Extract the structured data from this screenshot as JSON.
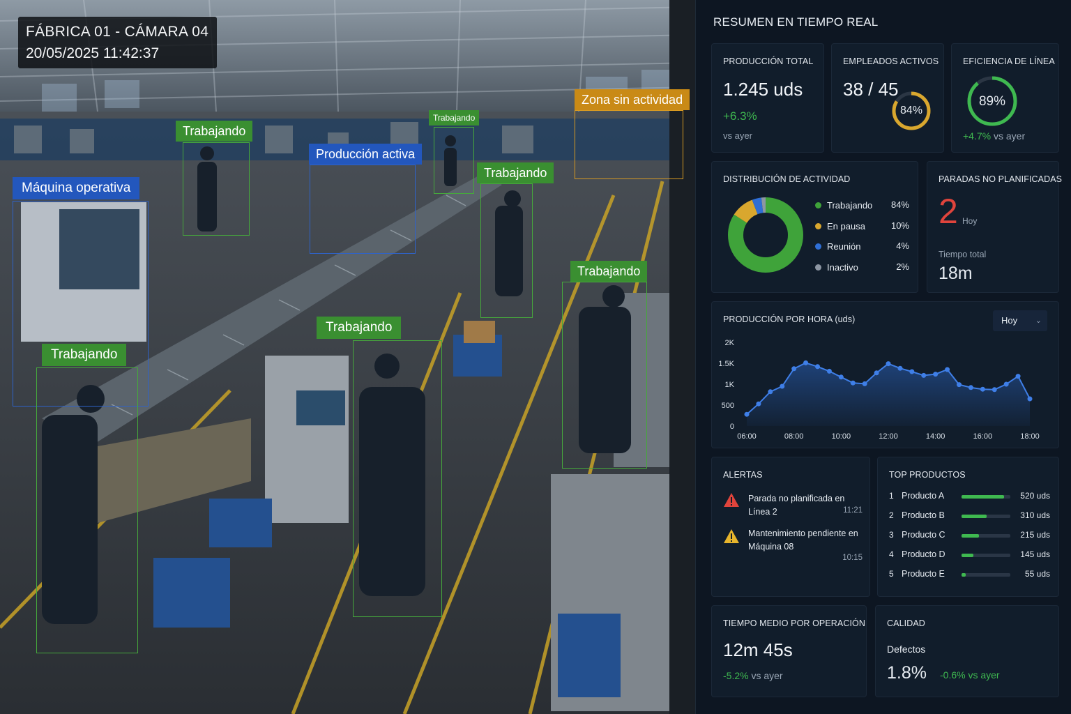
{
  "camera": {
    "title": "FÁBRICA 01 - CÁMARA 04",
    "datetime": "20/05/2025  11:42:37",
    "detections": [
      {
        "label": "Máquina operativa",
        "color": "blue"
      },
      {
        "label": "Trabajando",
        "color": "green"
      },
      {
        "label": "Producción activa",
        "color": "blue"
      },
      {
        "label": "Trabajando",
        "color": "green"
      },
      {
        "label": "Trabajando",
        "color": "green"
      },
      {
        "label": "Zona sin actividad",
        "color": "orange"
      },
      {
        "label": "Trabajando",
        "color": "green"
      },
      {
        "label": "Trabajando",
        "color": "green"
      },
      {
        "label": "Trabajando",
        "color": "green"
      }
    ]
  },
  "dashboard": {
    "title": "RESUMEN EN TIEMPO REAL",
    "production_total": {
      "label": "PRODUCCIÓN TOTAL",
      "value": "1.245 uds",
      "delta": "+6.3%",
      "compare": "vs ayer"
    },
    "employees": {
      "label": "EMPLEADOS ACTIVOS",
      "value": "38 / 45",
      "percent_label": "84%",
      "percent": 84
    },
    "efficiency": {
      "label": "EFICIENCIA DE LÍNEA",
      "value_label": "89%",
      "percent": 89,
      "delta": "+4.7%",
      "compare": "vs ayer"
    },
    "activity": {
      "label": "DISTRIBUCIÓN DE ACTIVIDAD",
      "items": [
        {
          "name": "Trabajando",
          "pct_label": "84%",
          "value": 84,
          "color": "#3fa33a"
        },
        {
          "name": "En pausa",
          "pct_label": "10%",
          "value": 10,
          "color": "#d9a72e"
        },
        {
          "name": "Reunión",
          "pct_label": "4%",
          "value": 4,
          "color": "#2f6fd6"
        },
        {
          "name": "Inactivo",
          "pct_label": "2%",
          "value": 2,
          "color": "#8d96a3"
        }
      ]
    },
    "stops": {
      "label": "PARADAS NO PLANIFICADAS",
      "count": "2",
      "period": "Hoy",
      "time_label": "Tiempo total",
      "time_value": "18m"
    },
    "hourly": {
      "label": "PRODUCCIÓN POR HORA (uds)",
      "select": "Hoy",
      "y_ticks": [
        "2K",
        "1.5K",
        "1K",
        "500",
        "0"
      ],
      "x_ticks": [
        "06:00",
        "08:00",
        "10:00",
        "12:00",
        "14:00",
        "16:00",
        "18:00"
      ]
    },
    "alerts": {
      "label": "ALERTAS",
      "items": [
        {
          "line1": "Parada no planificada en",
          "line2": "Línea 2",
          "time": "11:21",
          "level": "danger",
          "color": "#e0443c"
        },
        {
          "line1": "Mantenimiento pendiente en",
          "line2": "Máquina 08",
          "time": "10:15",
          "level": "warning",
          "color": "#e7b52c"
        }
      ]
    },
    "top_products": {
      "label": "TOP PRODUCTOS",
      "items": [
        {
          "rank": "1",
          "name": "Producto A",
          "value_label": "520 uds",
          "value": 520
        },
        {
          "rank": "2",
          "name": "Producto B",
          "value_label": "310 uds",
          "value": 310
        },
        {
          "rank": "3",
          "name": "Producto C",
          "value_label": "215 uds",
          "value": 215
        },
        {
          "rank": "4",
          "name": "Producto D",
          "value_label": "145 uds",
          "value": 145
        },
        {
          "rank": "5",
          "name": "Producto E",
          "value_label": "55 uds",
          "value": 55
        }
      ]
    },
    "avg_time": {
      "label": "TIEMPO MEDIO POR OPERACIÓN",
      "value": "12m 45s",
      "delta": "-5.2%",
      "compare": "vs ayer"
    },
    "quality": {
      "label": "CALIDAD",
      "sub": "Defectos",
      "value": "1.8%",
      "delta": "-0.6% vs ayer"
    }
  },
  "chart_data": {
    "type": "area",
    "title": "PRODUCCIÓN POR HORA (uds)",
    "x": [
      "06:00",
      "06:30",
      "07:00",
      "07:30",
      "08:00",
      "08:30",
      "09:00",
      "09:30",
      "10:00",
      "10:30",
      "11:00",
      "11:30",
      "12:00",
      "12:30",
      "13:00",
      "13:30",
      "14:00",
      "14:30",
      "15:00",
      "15:30",
      "16:00",
      "16:30",
      "17:00",
      "17:30",
      "18:00"
    ],
    "values": [
      280,
      530,
      820,
      950,
      1370,
      1510,
      1420,
      1310,
      1170,
      1030,
      1010,
      1270,
      1490,
      1380,
      1300,
      1210,
      1240,
      1350,
      990,
      920,
      880,
      870,
      1000,
      1190,
      650
    ],
    "ylim": [
      0,
      2000
    ],
    "color": "#3f7fe8",
    "grid": false
  }
}
